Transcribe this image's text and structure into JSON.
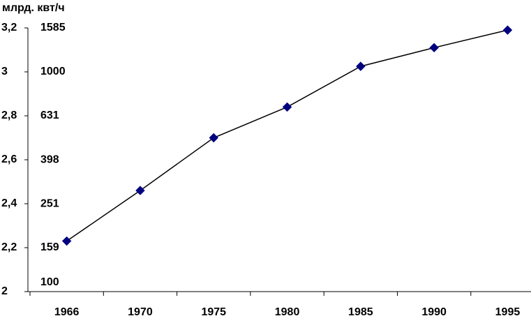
{
  "chart_data": {
    "type": "line",
    "title": "млрд. квт/ч",
    "categories": [
      "1966",
      "1970",
      "1975",
      "1980",
      "1985",
      "1990",
      "1995"
    ],
    "series": [
      {
        "name": null,
        "color": "#000080",
        "values": [
          2.23,
          2.46,
          2.7,
          2.84,
          3.025,
          3.11,
          3.19
        ]
      }
    ],
    "ylim": [
      2,
      3.2
    ],
    "yticks": [
      2,
      {
        "value": 2.2,
        "label": "2,2"
      },
      {
        "value": 2.4,
        "label": "2,4"
      },
      {
        "value": 2.6,
        "label": "2,6"
      },
      {
        "value": 2.8,
        "label": "2,8"
      },
      3,
      {
        "value": 3.2,
        "label": "3,2"
      }
    ],
    "y2lim": [
      100,
      1585
    ],
    "y2log": true,
    "y2ticks": [
      100,
      159,
      251,
      398,
      631,
      1000,
      1585
    ],
    "line_color": "#000000",
    "grid": false
  }
}
